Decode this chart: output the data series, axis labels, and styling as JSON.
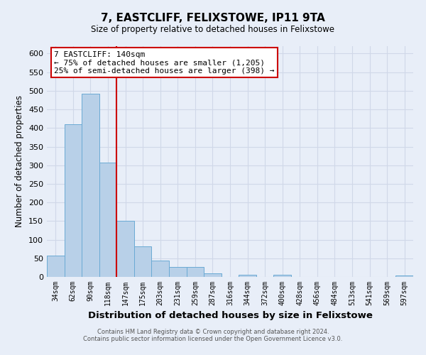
{
  "title": "7, EASTCLIFF, FELIXSTOWE, IP11 9TA",
  "subtitle": "Size of property relative to detached houses in Felixstowe",
  "xlabel": "Distribution of detached houses by size in Felixstowe",
  "ylabel": "Number of detached properties",
  "bar_labels": [
    "34sqm",
    "62sqm",
    "90sqm",
    "118sqm",
    "147sqm",
    "175sqm",
    "203sqm",
    "231sqm",
    "259sqm",
    "287sqm",
    "316sqm",
    "344sqm",
    "372sqm",
    "400sqm",
    "428sqm",
    "456sqm",
    "484sqm",
    "513sqm",
    "541sqm",
    "569sqm",
    "597sqm"
  ],
  "bar_values": [
    57,
    410,
    493,
    307,
    150,
    82,
    44,
    26,
    26,
    10,
    0,
    5,
    0,
    5,
    0,
    0,
    0,
    0,
    0,
    0,
    3
  ],
  "bar_color": "#b8d0e8",
  "bar_edge_color": "#6aaad4",
  "vline_x": 3.5,
  "vline_color": "#cc0000",
  "ylim": [
    0,
    620
  ],
  "yticks": [
    0,
    50,
    100,
    150,
    200,
    250,
    300,
    350,
    400,
    450,
    500,
    550,
    600
  ],
  "annotation_title": "7 EASTCLIFF: 140sqm",
  "annotation_line1": "← 75% of detached houses are smaller (1,205)",
  "annotation_line2": "25% of semi-detached houses are larger (398) →",
  "annotation_box_color": "#ffffff",
  "annotation_box_edge_color": "#cc0000",
  "bg_color": "#e8eef8",
  "grid_color": "#d0d8e8",
  "footer_line1": "Contains HM Land Registry data © Crown copyright and database right 2024.",
  "footer_line2": "Contains public sector information licensed under the Open Government Licence v3.0."
}
